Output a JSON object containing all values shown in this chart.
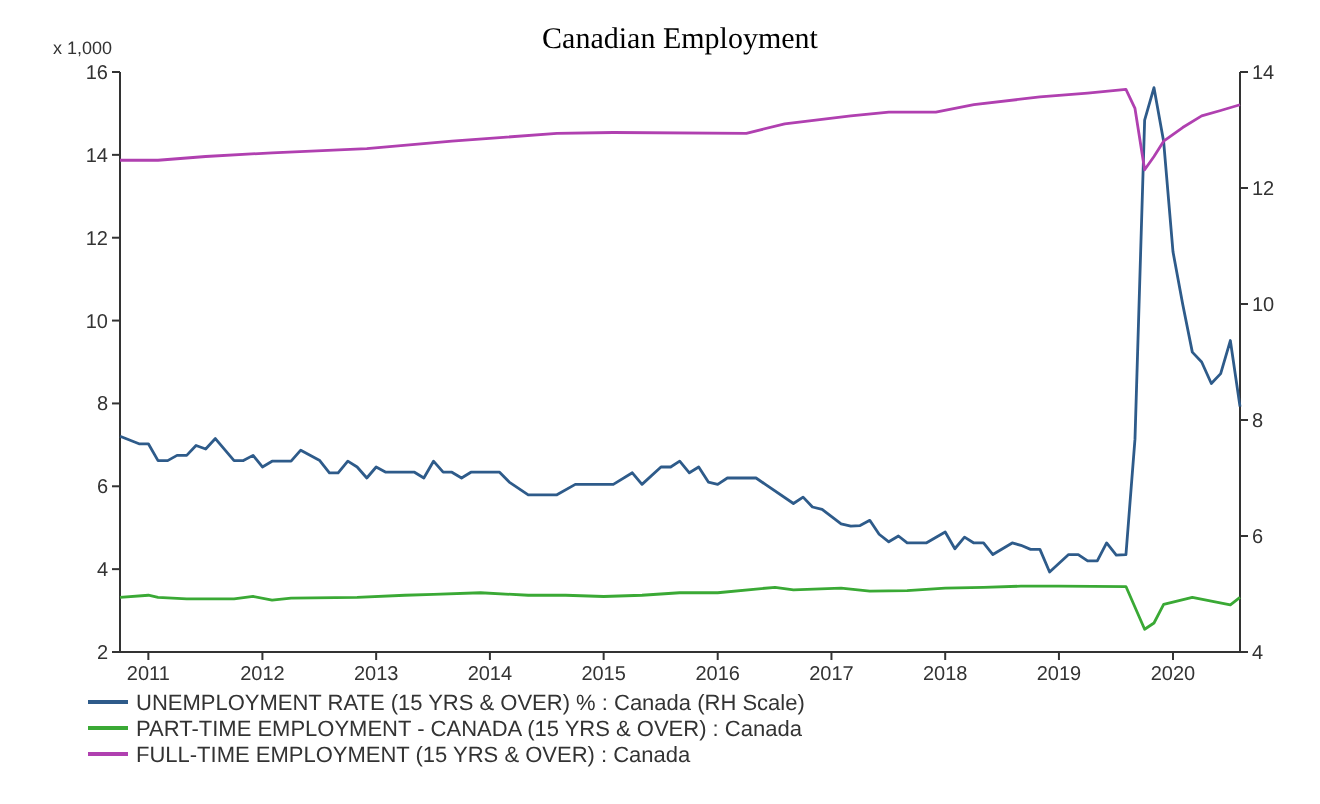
{
  "chart_data": {
    "type": "line",
    "title": "Canadian Employment",
    "ylabel": "x 1,000",
    "xlim": [
      "2011-04",
      "2021-02"
    ],
    "xticks": [
      {
        "value": "2011-07",
        "label": "2011"
      },
      {
        "value": "2012-07",
        "label": "2012"
      },
      {
        "value": "2013-07",
        "label": "2013"
      },
      {
        "value": "2014-07",
        "label": "2014"
      },
      {
        "value": "2015-07",
        "label": "2015"
      },
      {
        "value": "2016-07",
        "label": "2016"
      },
      {
        "value": "2017-07",
        "label": "2017"
      },
      {
        "value": "2018-07",
        "label": "2018"
      },
      {
        "value": "2019-07",
        "label": "2019"
      },
      {
        "value": "2020-07",
        "label": "2020"
      }
    ],
    "ylim": [
      2,
      16
    ],
    "yticks": [
      2,
      4,
      6,
      8,
      10,
      12,
      14,
      16
    ],
    "y2lim": [
      4,
      14
    ],
    "y2ticks": [
      4,
      6,
      8,
      10,
      12,
      14
    ],
    "legend": "bottom",
    "series": [
      {
        "name": "UNEMPLOYMENT RATE (15 YRS & OVER) % : Canada (RH Scale)",
        "color": "#2e5b8a",
        "axis": "y2",
        "x": [
          "2011-04",
          "2011-06",
          "2011-07",
          "2011-08",
          "2011-09",
          "2011-10",
          "2011-11",
          "2011-12",
          "2012-01",
          "2012-02",
          "2012-04",
          "2012-05",
          "2012-06",
          "2012-07",
          "2012-08",
          "2012-10",
          "2012-11",
          "2013-01",
          "2013-02",
          "2013-03",
          "2013-04",
          "2013-05",
          "2013-06",
          "2013-07",
          "2013-08",
          "2013-11",
          "2013-12",
          "2014-01",
          "2014-02",
          "2014-03",
          "2014-04",
          "2014-05",
          "2014-08",
          "2014-09",
          "2014-11",
          "2015-02",
          "2015-04",
          "2015-08",
          "2015-10",
          "2015-11",
          "2016-01",
          "2016-02",
          "2016-03",
          "2016-04",
          "2016-05",
          "2016-06",
          "2016-07",
          "2016-08",
          "2016-11",
          "2016-12",
          "2017-03",
          "2017-04",
          "2017-05",
          "2017-06",
          "2017-08",
          "2017-09",
          "2017-10",
          "2017-11",
          "2017-12",
          "2018-01",
          "2018-02",
          "2018-03",
          "2018-05",
          "2018-07",
          "2018-08",
          "2018-09",
          "2018-10",
          "2018-11",
          "2018-12",
          "2019-02",
          "2019-03",
          "2019-04",
          "2019-05",
          "2019-06",
          "2019-08",
          "2019-09",
          "2019-10",
          "2019-11",
          "2019-12",
          "2020-01",
          "2020-02",
          "2020-03",
          "2020-04",
          "2020-05",
          "2020-06",
          "2020-07",
          "2020-08",
          "2020-09",
          "2020-10",
          "2020-11",
          "2020-12",
          "2021-01",
          "2021-02"
        ],
        "values": [
          7.72,
          7.59,
          7.59,
          7.3,
          7.3,
          7.39,
          7.39,
          7.56,
          7.5,
          7.68,
          7.3,
          7.3,
          7.39,
          7.19,
          7.29,
          7.29,
          7.48,
          7.3,
          7.09,
          7.09,
          7.29,
          7.19,
          7.0,
          7.19,
          7.1,
          7.1,
          7.0,
          7.29,
          7.1,
          7.1,
          7.0,
          7.1,
          7.1,
          6.93,
          6.71,
          6.71,
          6.89,
          6.89,
          7.09,
          6.89,
          7.19,
          7.19,
          7.29,
          7.09,
          7.19,
          6.93,
          6.89,
          7.0,
          7.0,
          6.89,
          6.56,
          6.67,
          6.5,
          6.46,
          6.21,
          6.17,
          6.18,
          6.27,
          6.03,
          5.9,
          6.0,
          5.88,
          5.88,
          6.07,
          5.78,
          5.98,
          5.88,
          5.88,
          5.68,
          5.88,
          5.84,
          5.77,
          5.77,
          5.38,
          5.68,
          5.68,
          5.57,
          5.57,
          5.88,
          5.67,
          5.68,
          7.67,
          13.17,
          13.73,
          12.8,
          10.9,
          10.0,
          9.17,
          9.0,
          8.63,
          8.8,
          9.37,
          8.23
        ]
      },
      {
        "name": "PART-TIME EMPLOYMENT - CANADA (15 YRS & OVER) : Canada",
        "color": "#3aa935",
        "x": [
          "2011-04",
          "2011-07",
          "2011-08",
          "2011-11",
          "2012-04",
          "2012-06",
          "2012-08",
          "2012-10",
          "2013-05",
          "2013-10",
          "2014-01",
          "2014-06",
          "2014-11",
          "2015-03",
          "2015-07",
          "2015-11",
          "2016-03",
          "2016-07",
          "2016-11",
          "2017-01",
          "2017-03",
          "2017-08",
          "2017-11",
          "2018-03",
          "2018-07",
          "2018-11",
          "2019-03",
          "2019-07",
          "2020-02",
          "2020-04",
          "2020-05",
          "2020-06",
          "2020-09",
          "2020-11",
          "2021-01",
          "2021-02"
        ],
        "values": [
          3.32,
          3.37,
          3.32,
          3.28,
          3.28,
          3.34,
          3.25,
          3.3,
          3.32,
          3.37,
          3.39,
          3.43,
          3.37,
          3.37,
          3.34,
          3.37,
          3.43,
          3.43,
          3.52,
          3.56,
          3.5,
          3.54,
          3.47,
          3.48,
          3.54,
          3.56,
          3.59,
          3.59,
          3.58,
          2.55,
          2.7,
          3.15,
          3.32,
          3.23,
          3.14,
          3.32
        ]
      },
      {
        "name": "FULL-TIME EMPLOYMENT (15 YRS & OVER) : Canada",
        "color": "#b040b0",
        "x": [
          "2011-04",
          "2011-08",
          "2012-01",
          "2012-08",
          "2013-06",
          "2014-03",
          "2015-02",
          "2015-08",
          "2016-10",
          "2017-02",
          "2017-09",
          "2018-01",
          "2018-06",
          "2018-10",
          "2019-05",
          "2019-10",
          "2020-02",
          "2020-03",
          "2020-04",
          "2020-05",
          "2020-06",
          "2020-08",
          "2020-10",
          "2020-12",
          "2021-02"
        ],
        "values": [
          13.87,
          13.87,
          13.96,
          14.05,
          14.15,
          14.33,
          14.52,
          14.54,
          14.52,
          14.75,
          14.94,
          15.03,
          15.03,
          15.21,
          15.4,
          15.49,
          15.58,
          15.12,
          13.64,
          13.96,
          14.33,
          14.66,
          14.94,
          15.07,
          15.21
        ]
      }
    ]
  }
}
